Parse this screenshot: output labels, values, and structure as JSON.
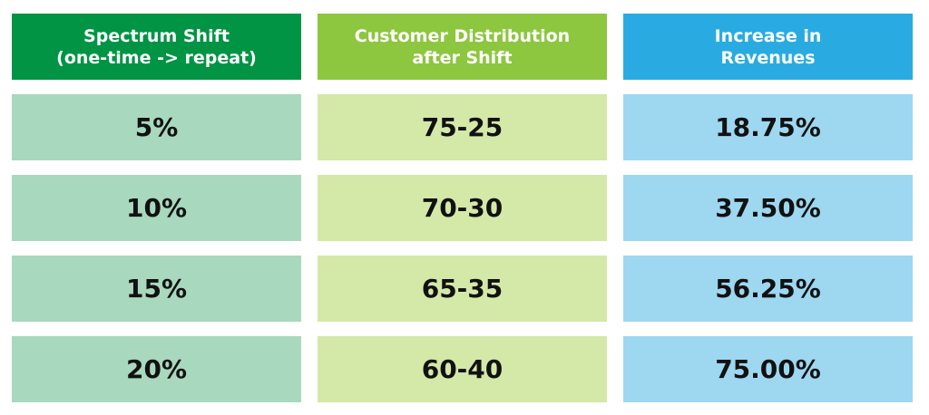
{
  "chart_data": {
    "type": "table",
    "columns": [
      {
        "header": "Spectrum Shift\n(one-time -> repeat)",
        "header_color": "#009444",
        "cell_color": "#a8d8bd"
      },
      {
        "header": "Customer Distribution\nafter Shift",
        "header_color": "#8dc63f",
        "cell_color": "#d4e8a8"
      },
      {
        "header": "Increase in\nRevenues",
        "header_color": "#29abe2",
        "cell_color": "#9dd7f0"
      }
    ],
    "rows": [
      [
        "5%",
        "75-25",
        "18.75%"
      ],
      [
        "10%",
        "70-30",
        "37.50%"
      ],
      [
        "15%",
        "65-35",
        "56.25%"
      ],
      [
        "20%",
        "60-40",
        "75.00%"
      ]
    ]
  }
}
